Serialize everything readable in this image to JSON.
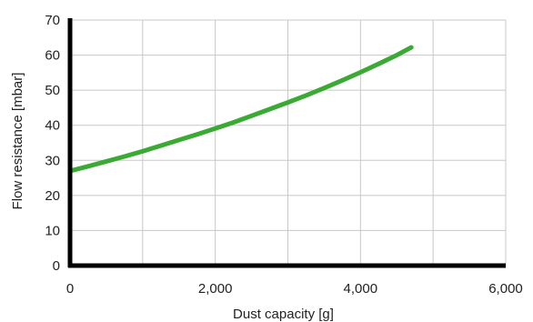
{
  "chart_data": {
    "type": "line",
    "xlabel": "Dust capacity [g]",
    "ylabel": "Flow resistance [mbar]",
    "xlim": [
      0,
      6000
    ],
    "ylim": [
      0,
      70
    ],
    "x_ticks": [
      0,
      2000,
      4000,
      6000
    ],
    "x_tick_labels": [
      "0",
      "2,000",
      "4,000",
      "6,000"
    ],
    "y_ticks": [
      0,
      10,
      20,
      30,
      40,
      50,
      60,
      70
    ],
    "y_tick_labels": [
      "0",
      "10",
      "20",
      "30",
      "40",
      "50",
      "60",
      "70"
    ],
    "x_grid_step": 1000,
    "y_grid_step": 10,
    "grid": true,
    "series": [
      {
        "color": "#3aaa35",
        "x": [
          0,
          250,
          500,
          750,
          1000,
          1250,
          1500,
          1750,
          2000,
          2250,
          2500,
          2750,
          3000,
          3250,
          3500,
          3750,
          4000,
          4250,
          4500,
          4700
        ],
        "y": [
          27.0,
          28.3,
          29.7,
          31.1,
          32.6,
          34.2,
          35.8,
          37.4,
          39.1,
          40.8,
          42.7,
          44.6,
          46.5,
          48.5,
          50.6,
          52.8,
          55.1,
          57.5,
          60.0,
          62.2
        ]
      }
    ]
  }
}
